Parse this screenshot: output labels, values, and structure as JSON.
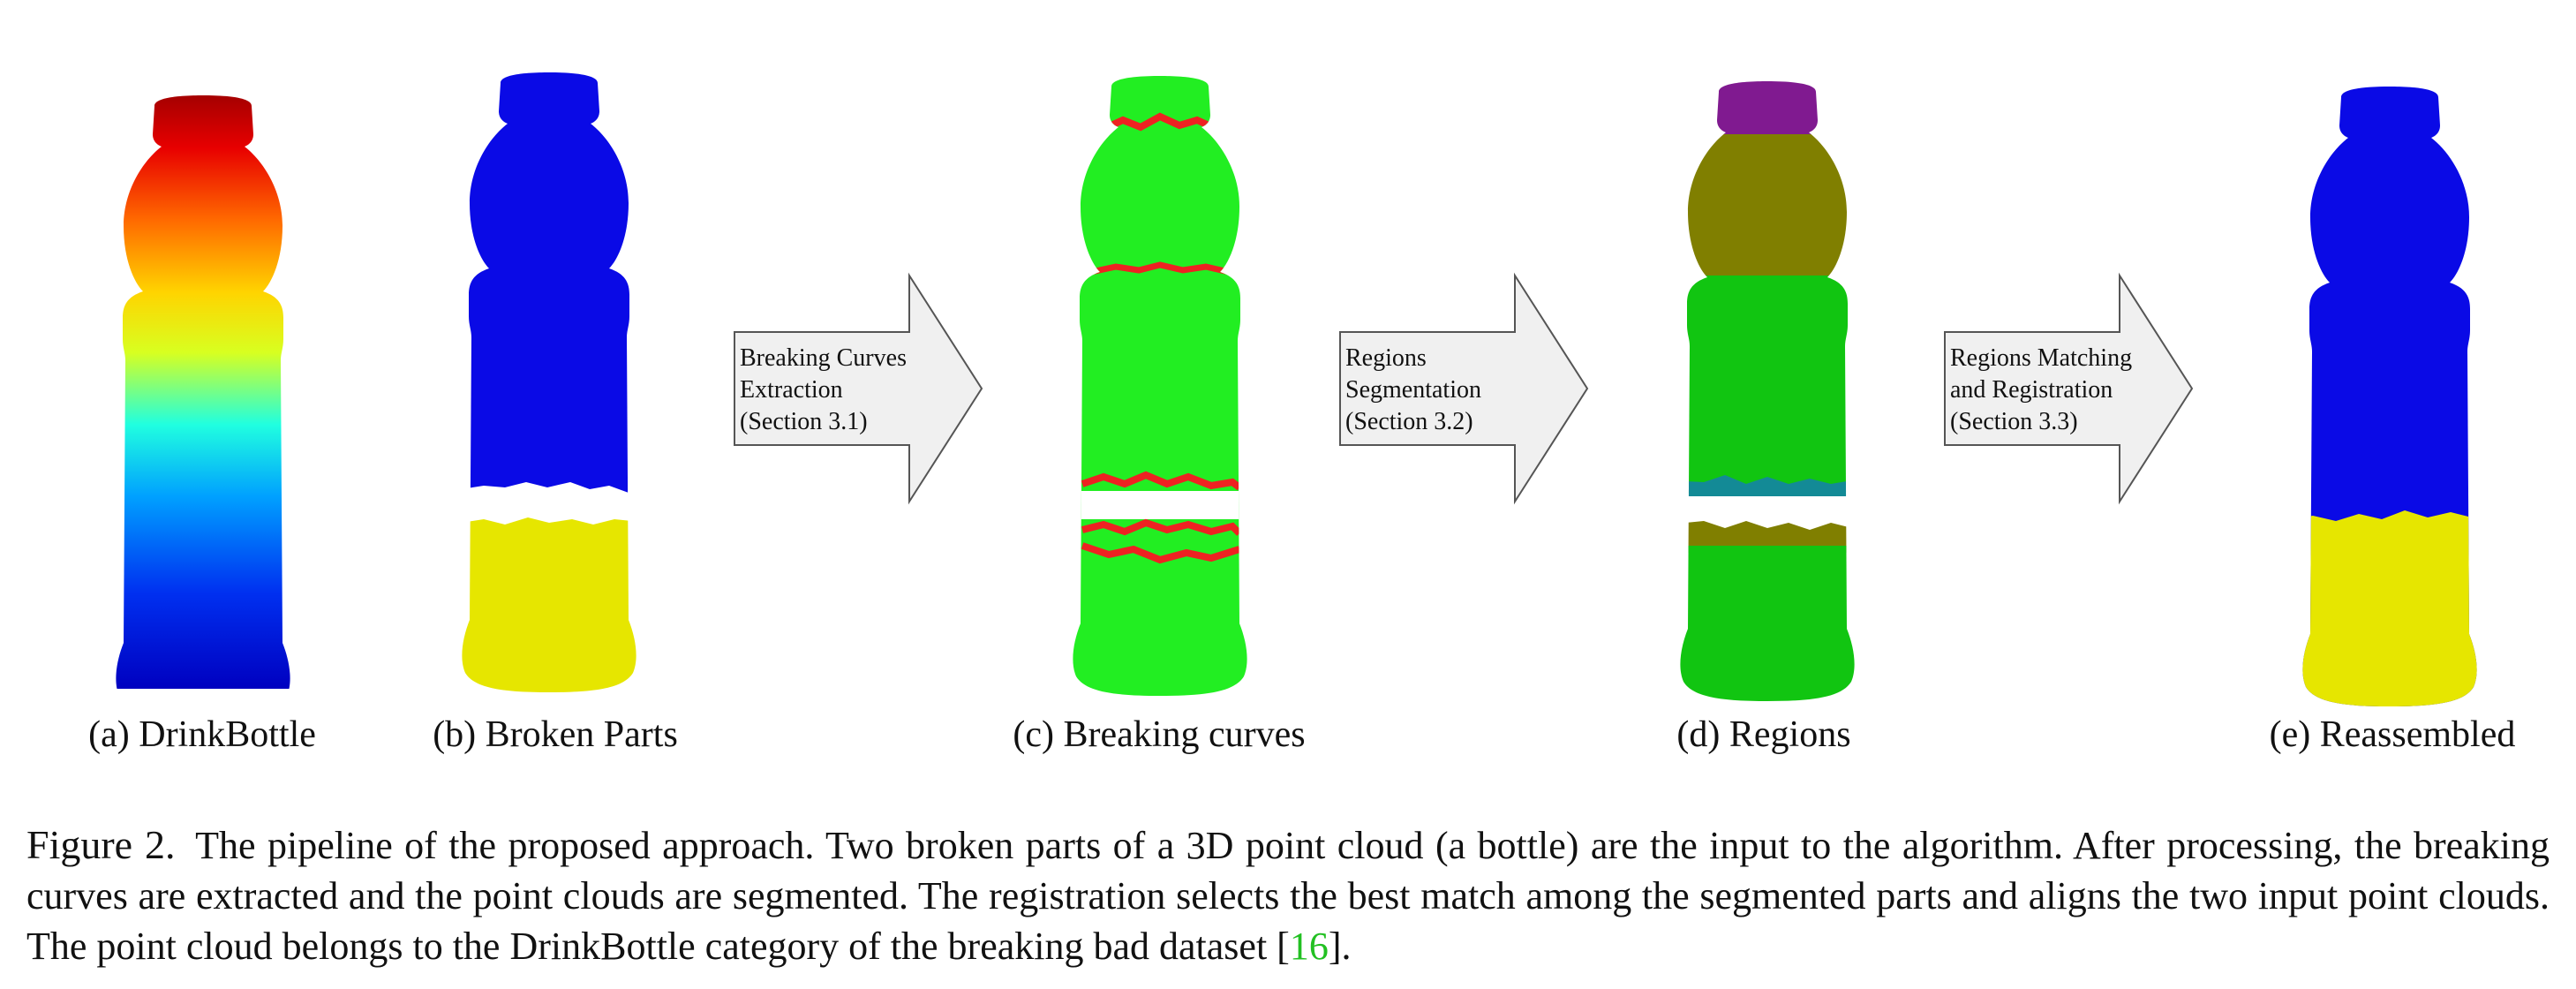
{
  "panels": [
    {
      "caption": "(a) DrinkBottle"
    },
    {
      "caption": "(b) Broken Parts"
    },
    {
      "caption": "(c) Breaking curves"
    },
    {
      "caption": "(d) Regions"
    },
    {
      "caption": "(e) Reassembled"
    }
  ],
  "arrows": [
    {
      "lines": [
        "Breaking Curves",
        "Extraction",
        "(Section 3.1)"
      ]
    },
    {
      "lines": [
        "Regions",
        "Segmentation",
        "(Section 3.2)"
      ]
    },
    {
      "lines": [
        "Regions Matching",
        "and Registration",
        "(Section 3.3)"
      ]
    }
  ],
  "caption": {
    "label": "Figure 2.",
    "text_before": "The pipeline of the proposed approach.  Two broken parts of a 3D point cloud (a bottle) are the input to the algorithm.  After processing, the breaking curves are extracted and the point clouds are segmented.  The registration selects the best match among the segmented parts and aligns the two input point clouds. The point cloud belongs to the DrinkBottle category of the breaking bad dataset [",
    "citation": "16",
    "text_after": "]."
  },
  "colors": {
    "part_blue": "#0a0ae6",
    "part_yellow": "#e6e600",
    "region_green": "#22ee22",
    "curve_red": "#ee2222",
    "region_purple": "#801a90",
    "region_olive": "#807f00",
    "region_dark_green": "#11c511",
    "region_teal": "#138a96",
    "arrow_fill": "#f0f0f0",
    "citation_green": "#22c022"
  }
}
